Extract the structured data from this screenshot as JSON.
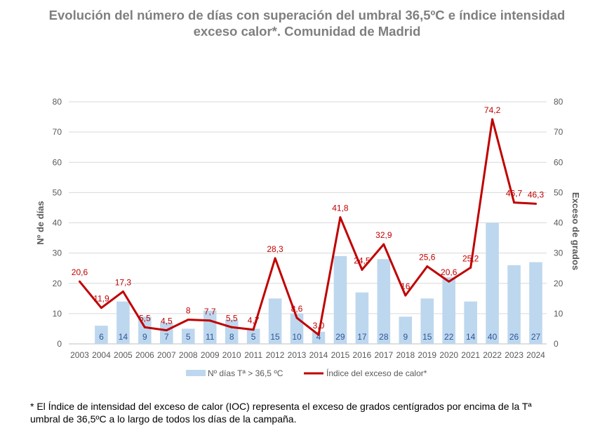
{
  "chart_data": {
    "type": "bar+line",
    "title": [
      "Evolución del número de días con superación del umbral 36,5ºC e índice intensidad",
      "exceso calor*. Comunidad de Madrid"
    ],
    "categories": [
      "2003",
      "2004",
      "2005",
      "2006",
      "2007",
      "2008",
      "2009",
      "2010",
      "2011",
      "2012",
      "2013",
      "2014",
      "2015",
      "2016",
      "2017",
      "2018",
      "2019",
      "2020",
      "2021",
      "2022",
      "2023",
      "2024"
    ],
    "ylabel_left": "Nº de días",
    "ylabel_right": "Exceso de grados",
    "ylim": [
      0,
      80
    ],
    "yticks": [
      0,
      10,
      20,
      30,
      40,
      50,
      60,
      70,
      80
    ],
    "series": [
      {
        "name": "Nº días Tª > 36,5 ºC",
        "kind": "bar",
        "axis": "left",
        "color": "#bdd7ee",
        "label_color": "#2f5597",
        "values": [
          0,
          6,
          14,
          9,
          7,
          5,
          11,
          8,
          5,
          15,
          10,
          4,
          29,
          17,
          28,
          9,
          15,
          22,
          14,
          40,
          26,
          27
        ],
        "labels": [
          "",
          "6",
          "14",
          "9",
          "7",
          "5",
          "11",
          "8",
          "5",
          "15",
          "10",
          "4",
          "29",
          "17",
          "28",
          "9",
          "15",
          "22",
          "14",
          "40",
          "26",
          "27"
        ]
      },
      {
        "name": "Índice del exceso de calor*",
        "kind": "line",
        "axis": "right",
        "color": "#c00000",
        "values": [
          20.6,
          11.9,
          17.3,
          5.5,
          4.5,
          8,
          7.7,
          5.5,
          4.7,
          28.3,
          8.6,
          3,
          41.8,
          24.5,
          32.9,
          16,
          25.6,
          20.6,
          25.2,
          74.2,
          46.7,
          46.3
        ],
        "labels": [
          "20,6",
          "11,9",
          "17,3",
          "5,5",
          "4,5",
          "8",
          "7,7",
          "5,5",
          "4,7",
          "28,3",
          "8,6",
          "3,0",
          "41,8",
          "24,5",
          "32,9",
          "16",
          "25,6",
          "20,6",
          "25,2",
          "74,2",
          "46,7",
          "46,3"
        ]
      }
    ],
    "legend_position": "bottom",
    "grid": true
  },
  "footnote": {
    "line1": "* El Índice de intensidad del exceso de calor (IOC) representa el exceso de grados centígrados por encima de la Tª",
    "line2": "umbral de 36,5ºC a lo largo de todos los días de la campaña."
  }
}
